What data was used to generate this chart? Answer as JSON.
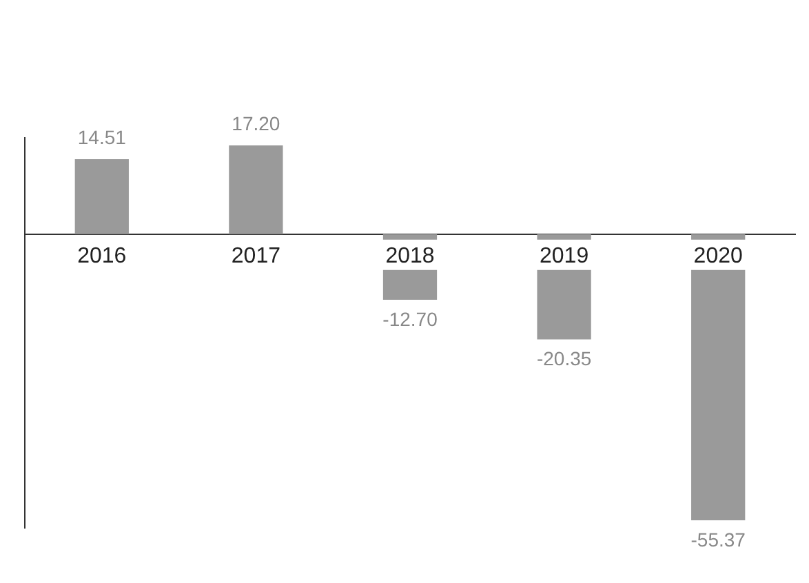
{
  "chart_data": {
    "type": "bar",
    "categories": [
      "2016",
      "2017",
      "2018",
      "2019",
      "2020"
    ],
    "values": [
      14.51,
      17.2,
      -12.7,
      -20.35,
      -55.37
    ],
    "value_labels": [
      "14.51",
      "17.20",
      "-12.70",
      "-20.35",
      "-55.37"
    ],
    "color": "#9a9a9a",
    "tick_labels": "x",
    "grid": false,
    "legend": false
  }
}
